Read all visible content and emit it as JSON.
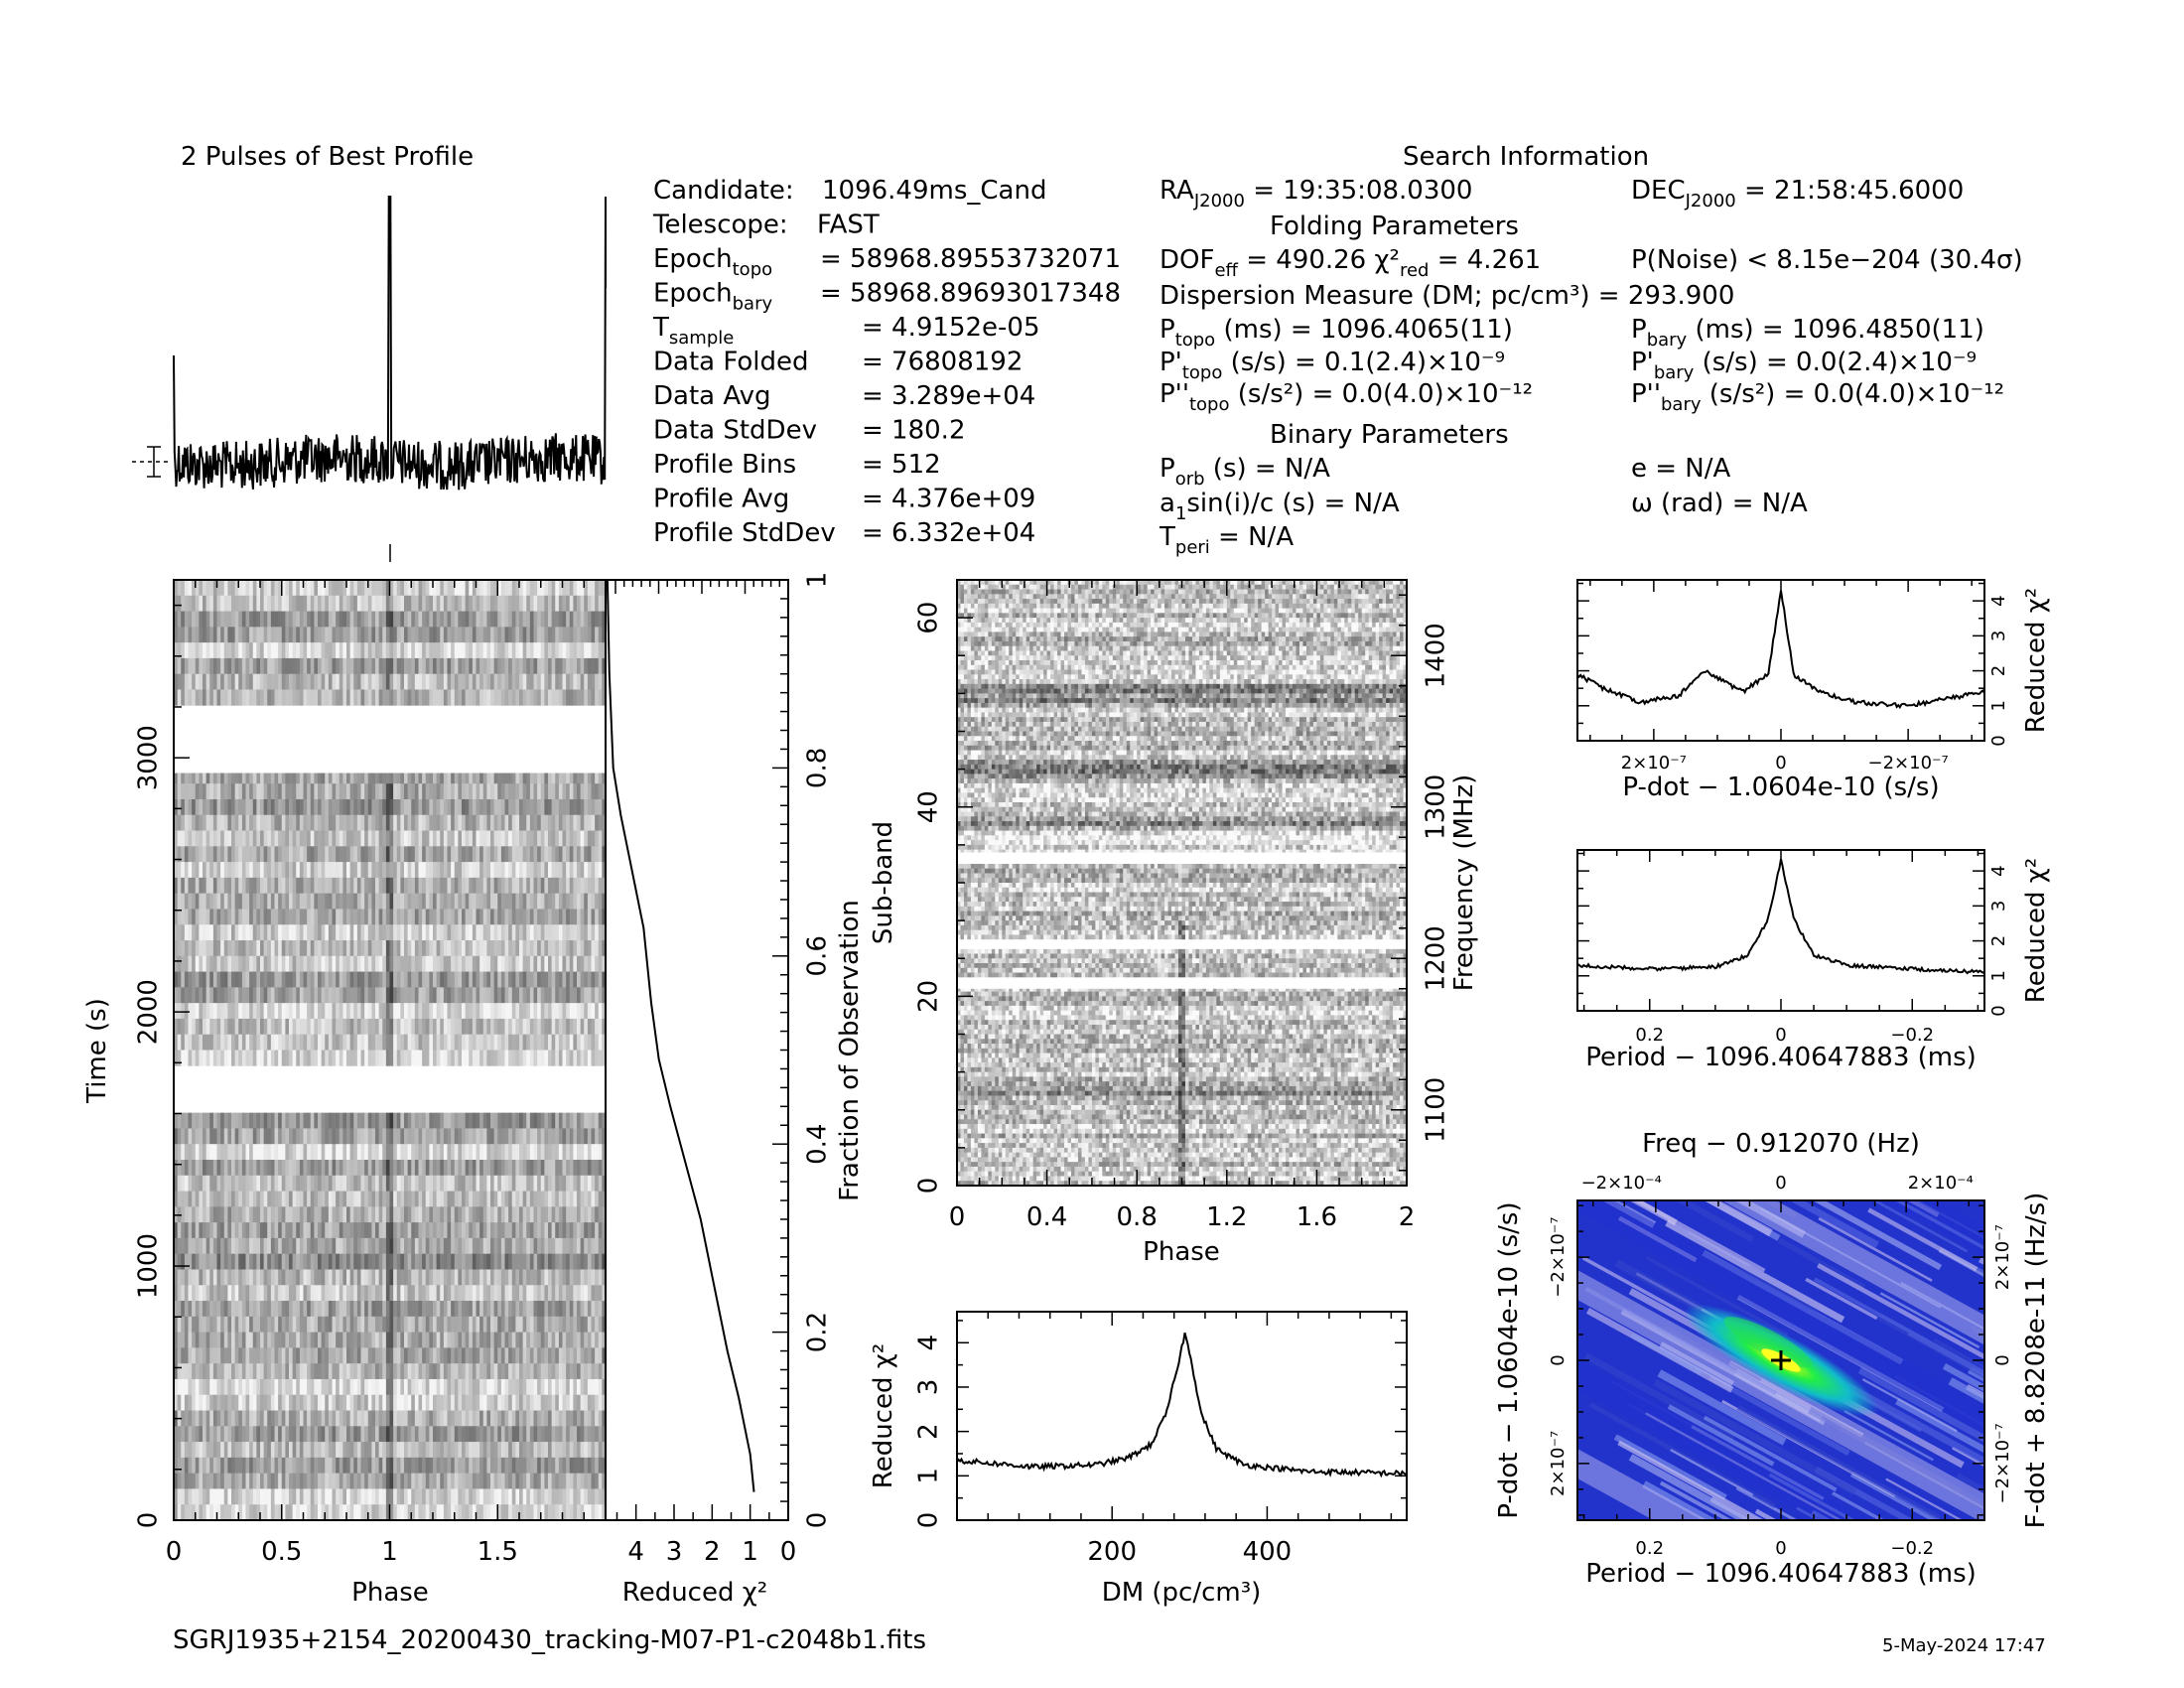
{
  "top_left_title": "2 Pulses of Best Profile",
  "search_title": "Search Information",
  "folding_title": "Folding Parameters",
  "binary_title": "Binary Parameters",
  "left_info": [
    {
      "k": "Candidate:",
      "v": "1096.49ms_Cand"
    },
    {
      "k": "Telescope:",
      "v": "FAST"
    },
    {
      "k": "Epoch",
      "sub": "topo",
      "v": "= 58968.89553732071"
    },
    {
      "k": "Epoch",
      "sub": "bary",
      "v": "= 58968.89693017348"
    },
    {
      "k": "T",
      "sub": "sample",
      "v": "=  4.9152e-05"
    },
    {
      "k": "Data Folded",
      "v": "=  76808192"
    },
    {
      "k": "Data Avg",
      "v": "=  3.289e+04"
    },
    {
      "k": "Data StdDev",
      "v": "=  180.2"
    },
    {
      "k": "Profile Bins",
      "v": "=  512"
    },
    {
      "k": "Profile Avg",
      "v": "=  4.376e+09"
    },
    {
      "k": "Profile StdDev",
      "v": "=  6.332e+04"
    }
  ],
  "ra": {
    "k": "RA",
    "sub": "J2000",
    "v": " = 19:35:08.0300"
  },
  "dec": {
    "k": "DEC",
    "sub": "J2000",
    "v": " = 21:58:45.6000"
  },
  "dof": {
    "k": "DOF",
    "sub": "eff",
    "v": " = 490.26  χ²",
    "sub2": "red",
    "v2": " = 4.261"
  },
  "pnoise": "P(Noise) < 8.15e−204   (30.4σ)",
  "dm_line": "Dispersion Measure (DM; pc/cm³) = 293.900",
  "p_topo": {
    "k": "P",
    "sub": "topo",
    "v": " (ms) =   1096.4065(11)"
  },
  "p_bary": {
    "k": "P",
    "sub": "bary",
    "v": " (ms) =   1096.4850(11)"
  },
  "pd_topo": {
    "k": "P'",
    "sub": "topo",
    "v": " (s/s) =  0.1(2.4)×10⁻⁹"
  },
  "pd_bary": {
    "k": "P'",
    "sub": "bary",
    "v": " (s/s) = 0.0(2.4)×10⁻⁹"
  },
  "pdd_topo": {
    "k": "P''",
    "sub": "topo",
    "v": " (s/s²) = 0.0(4.0)×10⁻¹²"
  },
  "pdd_bary": {
    "k": "P''",
    "sub": "bary",
    "v": " (s/s²) = 0.0(4.0)×10⁻¹²"
  },
  "porb": {
    "k": "P",
    "sub": "orb",
    "v": " (s) = N/A"
  },
  "ecc": "e = N/A",
  "asini": {
    "k": "a",
    "sub": "1",
    "v": "sin(i)/c (s) = N/A"
  },
  "omega": "ω (rad) = N/A",
  "tperi": {
    "k": "T",
    "sub": "peri",
    "v": " = N/A"
  },
  "filename": "SGRJ1935+2154_20200430_tracking-M07-P1-c2048b1.fits",
  "timestamp": "5-May-2024 17:47",
  "chart_data": [
    {
      "type": "line",
      "name": "profile",
      "title": "2 Pulses of Best Profile",
      "xlim": [
        0,
        2
      ],
      "peaks_at_phase": [
        1.0,
        2.0
      ]
    },
    {
      "type": "heatmap",
      "name": "time-phase",
      "xlabel": "Phase",
      "ylabel": "Time (s)",
      "xlim": [
        0,
        2
      ],
      "ylim": [
        0,
        3700
      ],
      "xticks": [
        "0",
        "0.5",
        "1",
        "1.5"
      ],
      "yticks": [
        "0",
        "1000",
        "2000",
        "3000"
      ],
      "masked_time_ranges": [
        [
          1630,
          1770
        ],
        [
          2940,
          3180
        ]
      ]
    },
    {
      "type": "line",
      "name": "chi2-vs-time",
      "xlabel": "Reduced χ²",
      "ylabel": "Fraction of Observation",
      "xlim": [
        4.8,
        0
      ],
      "ylim": [
        0,
        1
      ],
      "xticks": [
        "4",
        "3",
        "2",
        "1",
        "0"
      ],
      "yticks": [
        "0",
        "0.2",
        "0.4",
        "0.6",
        "0.8",
        "1"
      ],
      "x": [
        0.9,
        1.0,
        1.3,
        1.6,
        2.0,
        2.3,
        2.7,
        3.1,
        3.4,
        3.6,
        3.8,
        4.1,
        4.4,
        4.6,
        4.7,
        4.75
      ],
      "y": [
        0.03,
        0.07,
        0.13,
        0.18,
        0.26,
        0.32,
        0.38,
        0.44,
        0.49,
        0.55,
        0.63,
        0.69,
        0.75,
        0.8,
        0.9,
        1.0
      ]
    },
    {
      "type": "heatmap",
      "name": "subband-phase",
      "xlabel": "Phase",
      "ylabel": "Sub-band",
      "y2label": "Frequency (MHz)",
      "xlim": [
        0,
        2
      ],
      "ylim": [
        0,
        64
      ],
      "xticks": [
        "0",
        "0.4",
        "0.8",
        "1.2",
        "1.6",
        "2"
      ],
      "yticks": [
        "0",
        "20",
        "40",
        "60"
      ],
      "y2ticks": [
        "1100",
        "1200",
        "1300",
        "1400"
      ],
      "masked_subbands": [
        [
          20.8,
          22
        ],
        [
          25,
          26
        ],
        [
          34,
          35.2
        ]
      ]
    },
    {
      "type": "line",
      "name": "chi2-vs-dm",
      "xlabel": "DM (pc/cm³)",
      "ylabel": "Reduced χ²",
      "xlim": [
        0,
        580
      ],
      "ylim": [
        0,
        4.7
      ],
      "xticks": [
        "200",
        "400"
      ],
      "yticks": [
        "0",
        "1",
        "2",
        "3",
        "4"
      ],
      "x": [
        0,
        100,
        180,
        220,
        250,
        270,
        285,
        293.9,
        300,
        315,
        335,
        370,
        450,
        580
      ],
      "y": [
        1.35,
        1.2,
        1.25,
        1.4,
        1.7,
        2.4,
        3.5,
        4.2,
        3.8,
        2.4,
        1.6,
        1.25,
        1.1,
        1.05
      ]
    },
    {
      "type": "line",
      "name": "chi2-vs-pdot",
      "xlabel": "P-dot − 1.0604e-10 (s/s)",
      "ylabel": "Reduced χ²",
      "xlim": [
        3.2e-07,
        -3.2e-07
      ],
      "ylim": [
        0,
        4.6
      ],
      "xticks": [
        "2×10⁻⁷",
        "0",
        "−2×10⁻⁷"
      ],
      "yticks": [
        "0",
        "1",
        "2",
        "3",
        "4"
      ],
      "x": [
        3.2e-07,
        2.8e-07,
        2.2e-07,
        1.6e-07,
        1.2e-07,
        6e-08,
        2e-08,
        0,
        -2e-08,
        -6e-08,
        -1.2e-07,
        -2e-07,
        -2.6e-07,
        -3.2e-07
      ],
      "y": [
        1.9,
        1.5,
        1.1,
        1.3,
        2.0,
        1.4,
        1.9,
        4.3,
        1.9,
        1.4,
        1.1,
        1.0,
        1.2,
        1.4
      ]
    },
    {
      "type": "line",
      "name": "chi2-vs-period",
      "xlabel": "Period − 1096.40647883 (ms)",
      "ylabel": "Reduced χ²",
      "xlim": [
        0.31,
        -0.31
      ],
      "ylim": [
        0,
        4.6
      ],
      "xticks": [
        "0.2",
        "0",
        "−0.2"
      ],
      "yticks": [
        "0",
        "1",
        "2",
        "3",
        "4"
      ],
      "x": [
        0.31,
        0.2,
        0.1,
        0.05,
        0.02,
        0,
        -0.02,
        -0.05,
        -0.1,
        -0.2,
        -0.31
      ],
      "y": [
        1.3,
        1.2,
        1.25,
        1.6,
        2.6,
        4.3,
        2.6,
        1.6,
        1.3,
        1.2,
        1.1
      ]
    },
    {
      "type": "heatmap",
      "name": "period-pdot",
      "title": "Freq − 0.912070 (Hz)",
      "xlabel": "Period − 1096.40647883 (ms)",
      "ylabel": "P-dot − 1.0604e-10 (s/s)",
      "y2label": "F-dot + 8.8208e-11 (Hz/s)",
      "xticks": [
        "0.2",
        "0",
        "−0.2"
      ],
      "x2ticks": [
        "−2×10⁻⁴",
        "0",
        "2×10⁻⁴"
      ],
      "yticks": [
        "−2×10⁻⁷",
        "0",
        "2×10⁻⁷"
      ],
      "y2ticks": [
        "2×10⁻⁷",
        "0",
        "−2×10⁻⁷"
      ],
      "peak": [
        0,
        0
      ]
    }
  ]
}
